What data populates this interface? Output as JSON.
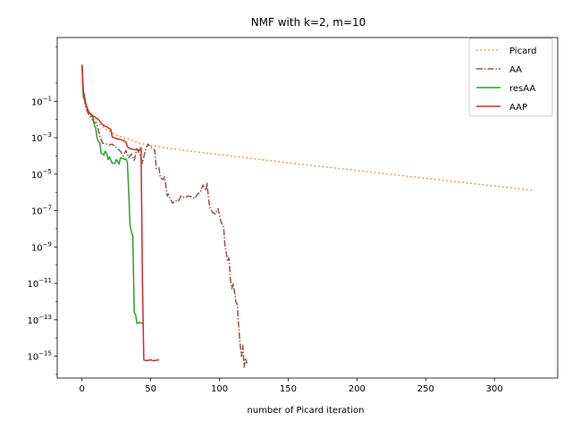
{
  "chart_data": {
    "type": "line",
    "title": "NMF with k=2, m=10",
    "xlabel": "number of Picard iteration",
    "ylabel": "",
    "xlim": [
      -18,
      346
    ],
    "ylim_log10": [
      -16.2,
      2.5
    ],
    "yscale": "log",
    "grid": false,
    "legend_position": "top-right",
    "x_ticks": [
      {
        "value": 0,
        "label": "0"
      },
      {
        "value": 50,
        "label": "50"
      },
      {
        "value": 100,
        "label": "100"
      },
      {
        "value": 150,
        "label": "150"
      },
      {
        "value": 200,
        "label": "200"
      },
      {
        "value": 250,
        "label": "250"
      },
      {
        "value": 300,
        "label": "300"
      }
    ],
    "y_ticks": [
      {
        "exp": -1,
        "base": "10",
        "sup": "−1"
      },
      {
        "exp": -3,
        "base": "10",
        "sup": "−3"
      },
      {
        "exp": -5,
        "base": "10",
        "sup": "−5"
      },
      {
        "exp": -7,
        "base": "10",
        "sup": "−7"
      },
      {
        "exp": -9,
        "base": "10",
        "sup": "−9"
      },
      {
        "exp": -11,
        "base": "10",
        "sup": "−11"
      },
      {
        "exp": -13,
        "base": "10",
        "sup": "−13"
      },
      {
        "exp": -15,
        "base": "10",
        "sup": "−15"
      }
    ],
    "series": [
      {
        "name": "Picard",
        "color": "#ff7f0e",
        "dash": "1.5,3",
        "points": [
          [
            0,
            1.0
          ],
          [
            1,
            -0.6
          ],
          [
            2,
            -1.0
          ],
          [
            3,
            -1.3
          ],
          [
            5,
            -1.6
          ],
          [
            7,
            -1.85
          ],
          [
            10,
            -2.1
          ],
          [
            15,
            -2.4
          ],
          [
            20,
            -2.65
          ],
          [
            25,
            -2.85
          ],
          [
            30,
            -3.0
          ],
          [
            35,
            -3.1
          ],
          [
            40,
            -3.25
          ],
          [
            45,
            -3.35
          ],
          [
            50,
            -3.42
          ],
          [
            60,
            -3.55
          ],
          [
            70,
            -3.65
          ],
          [
            80,
            -3.75
          ],
          [
            100,
            -3.93
          ],
          [
            130,
            -4.2
          ],
          [
            150,
            -4.38
          ],
          [
            200,
            -4.8
          ],
          [
            250,
            -5.23
          ],
          [
            300,
            -5.65
          ],
          [
            329,
            -5.9
          ]
        ]
      },
      {
        "name": "AA",
        "color": "#8c564b",
        "dash": "7,2,1.5,2",
        "points": [
          [
            0,
            1.0
          ],
          [
            1,
            -0.6
          ],
          [
            2,
            -1.0
          ],
          [
            3,
            -1.4
          ],
          [
            5,
            -1.75
          ],
          [
            8,
            -2.05
          ],
          [
            11,
            -2.3
          ],
          [
            13,
            -2.9
          ],
          [
            15,
            -3.3
          ],
          [
            18,
            -3.35
          ],
          [
            20,
            -3.4
          ],
          [
            22,
            -3.35
          ],
          [
            25,
            -3.55
          ],
          [
            28,
            -3.75
          ],
          [
            30,
            -4.0
          ],
          [
            32,
            -3.7
          ],
          [
            34,
            -4.1
          ],
          [
            36,
            -3.9
          ],
          [
            38,
            -4.25
          ],
          [
            40,
            -3.6
          ],
          [
            42,
            -3.9
          ],
          [
            44,
            -4.4
          ],
          [
            46,
            -3.7
          ],
          [
            48,
            -3.35
          ],
          [
            50,
            -3.5
          ],
          [
            53,
            -3.7
          ],
          [
            54,
            -4.7
          ],
          [
            56,
            -4.65
          ],
          [
            57,
            -5.2
          ],
          [
            59,
            -5.3
          ],
          [
            60,
            -5.15
          ],
          [
            61,
            -5.6
          ],
          [
            62,
            -6.2
          ],
          [
            63,
            -6.1
          ],
          [
            64,
            -6.35
          ],
          [
            66,
            -6.6
          ],
          [
            68,
            -6.45
          ],
          [
            70,
            -6.5
          ],
          [
            72,
            -6.2
          ],
          [
            75,
            -6.3
          ],
          [
            77,
            -6.2
          ],
          [
            80,
            -6.25
          ],
          [
            82,
            -6.35
          ],
          [
            84,
            -6.1
          ],
          [
            86,
            -6.0
          ],
          [
            88,
            -5.6
          ],
          [
            90,
            -5.9
          ],
          [
            91,
            -5.5
          ],
          [
            92,
            -6.3
          ],
          [
            93,
            -6.85
          ],
          [
            95,
            -7.1
          ],
          [
            97,
            -7.2
          ],
          [
            99,
            -6.9
          ],
          [
            101,
            -7.6
          ],
          [
            103,
            -7.9
          ],
          [
            104,
            -8.9
          ],
          [
            106,
            -9.8
          ],
          [
            107,
            -9.6
          ],
          [
            108,
            -10.8
          ],
          [
            109,
            -11.3
          ],
          [
            110,
            -11.0
          ],
          [
            111,
            -11.5
          ],
          [
            112,
            -12.0
          ],
          [
            113,
            -12.2
          ],
          [
            114,
            -13.4
          ],
          [
            115,
            -14.3
          ],
          [
            116,
            -15.0
          ],
          [
            117,
            -14.4
          ],
          [
            118,
            -15.6
          ],
          [
            119,
            -15.1
          ],
          [
            120,
            -15.4
          ]
        ]
      },
      {
        "name": "resAA",
        "color": "#2ca02c",
        "dash": "",
        "points": [
          [
            0,
            1.0
          ],
          [
            1,
            -0.8
          ],
          [
            2,
            -0.9
          ],
          [
            3,
            -1.2
          ],
          [
            5,
            -1.6
          ],
          [
            8,
            -1.9
          ],
          [
            9,
            -2.3
          ],
          [
            10,
            -2.5
          ],
          [
            11,
            -3.0
          ],
          [
            12,
            -3.2
          ],
          [
            13,
            -3.3
          ],
          [
            14,
            -3.85
          ],
          [
            16,
            -3.95
          ],
          [
            17,
            -3.75
          ],
          [
            18,
            -3.85
          ],
          [
            19,
            -4.2
          ],
          [
            20,
            -4.05
          ],
          [
            22,
            -4.4
          ],
          [
            24,
            -4.4
          ],
          [
            25,
            -4.2
          ],
          [
            27,
            -4.45
          ],
          [
            28,
            -4.1
          ],
          [
            30,
            -4.15
          ],
          [
            31,
            -4.2
          ],
          [
            32,
            -4.15
          ],
          [
            33,
            -4.35
          ],
          [
            34,
            -5.95
          ],
          [
            35,
            -7.8
          ],
          [
            36,
            -8.2
          ],
          [
            37,
            -8.4
          ],
          [
            38,
            -12.6
          ],
          [
            39,
            -12.7
          ],
          [
            40,
            -13.2
          ],
          [
            42,
            -13.15
          ],
          [
            44,
            -13.2
          ]
        ]
      },
      {
        "name": "AAP",
        "color": "#d62728",
        "dash": "",
        "points": [
          [
            0,
            1.0
          ],
          [
            1,
            -0.4
          ],
          [
            2,
            -0.8
          ],
          [
            3,
            -1.2
          ],
          [
            5,
            -1.6
          ],
          [
            8,
            -1.8
          ],
          [
            12,
            -2.0
          ],
          [
            15,
            -2.3
          ],
          [
            18,
            -2.4
          ],
          [
            21,
            -2.55
          ],
          [
            22,
            -2.95
          ],
          [
            25,
            -3.05
          ],
          [
            28,
            -3.1
          ],
          [
            30,
            -3.15
          ],
          [
            32,
            -3.25
          ],
          [
            33,
            -3.5
          ],
          [
            35,
            -3.6
          ],
          [
            38,
            -3.65
          ],
          [
            42,
            -3.7
          ],
          [
            43,
            -3.55
          ],
          [
            44,
            -11.0
          ],
          [
            45,
            -15.2
          ],
          [
            47,
            -15.25
          ],
          [
            50,
            -15.2
          ],
          [
            52,
            -15.25
          ],
          [
            56,
            -15.2
          ]
        ]
      }
    ]
  }
}
